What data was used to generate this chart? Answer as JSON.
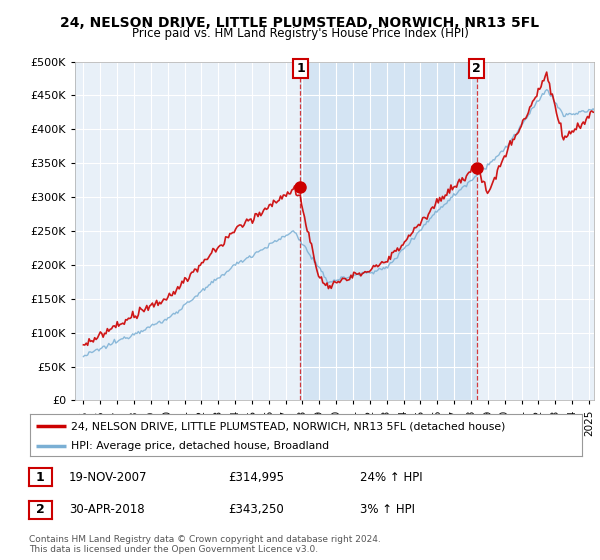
{
  "title": "24, NELSON DRIVE, LITTLE PLUMSTEAD, NORWICH, NR13 5FL",
  "subtitle": "Price paid vs. HM Land Registry's House Price Index (HPI)",
  "legend_line1": "24, NELSON DRIVE, LITTLE PLUMSTEAD, NORWICH, NR13 5FL (detached house)",
  "legend_line2": "HPI: Average price, detached house, Broadland",
  "annotation1_date": "19-NOV-2007",
  "annotation1_price": "£314,995",
  "annotation1_hpi": "24% ↑ HPI",
  "annotation2_date": "30-APR-2018",
  "annotation2_price": "£343,250",
  "annotation2_hpi": "3% ↑ HPI",
  "footer": "Contains HM Land Registry data © Crown copyright and database right 2024.\nThis data is licensed under the Open Government Licence v3.0.",
  "sale1_x": 2007.88,
  "sale1_y": 314995,
  "sale2_x": 2018.33,
  "sale2_y": 343250,
  "red_color": "#cc0000",
  "blue_color": "#7aafd4",
  "shade_color": "#ddeeff",
  "background_color": "#e8f0f8",
  "ylim": [
    0,
    500000
  ],
  "xlim_start": 1994.5,
  "xlim_end": 2025.3
}
